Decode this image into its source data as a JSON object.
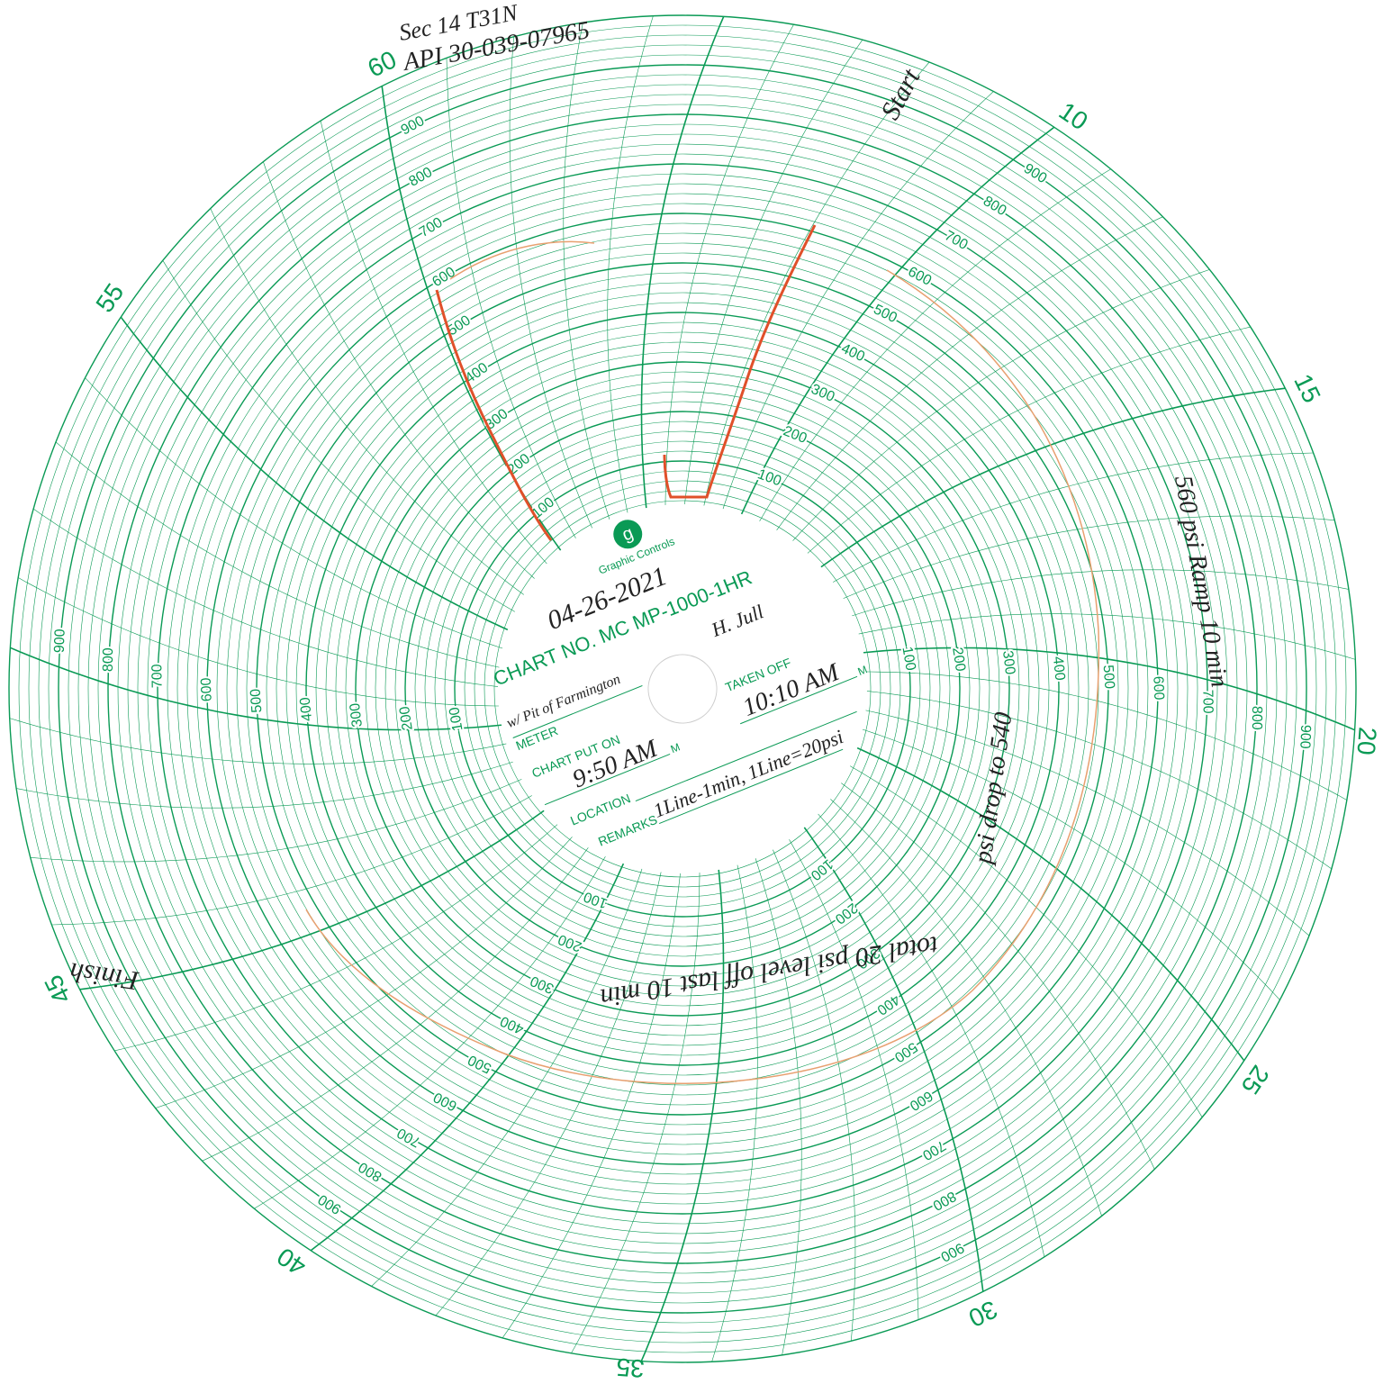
{
  "chart_paper": {
    "brand": "Graphic Controls",
    "logo": "g",
    "minute_labels": [
      10,
      15,
      20,
      25,
      30,
      35,
      40,
      45,
      55,
      60
    ],
    "pressure_labels": [
      100,
      200,
      300,
      400,
      500,
      600,
      700,
      800,
      900
    ]
  },
  "card": {
    "chart_no": "CHART NO. MC MP-1000-1HR",
    "meter_label": "METER",
    "taken_off_label": "TAKEN OFF",
    "chart_put_on_label": "CHART PUT ON",
    "location_label": "LOCATION",
    "remarks_label": "REMARKS",
    "m_suffix": "M"
  },
  "handwriting": {
    "header_line_1": "Sec 14 T31N",
    "header_line_2": "API 30-039-07965",
    "date": "04-26-2021",
    "meter": "w/ Pit of Farmington",
    "signature": "H. Jull",
    "taken_off": "10:10 AM",
    "put_on": "9:50 AM",
    "remarks": "1Line-1min, 1Line=20psi",
    "start": "Start",
    "finish": "Finish",
    "note_ramp": "560 psi Ramp 10 min",
    "note_drop": "psi drop to 540",
    "note_total": "total 20 psi level off last 10 min"
  }
}
